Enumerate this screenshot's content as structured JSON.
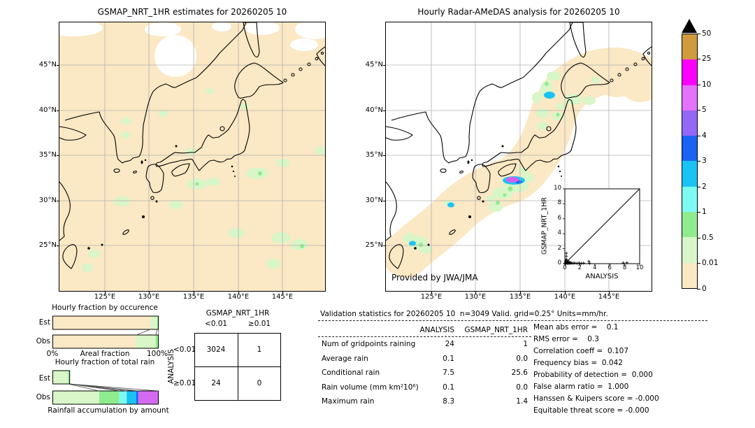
{
  "colorbar": {
    "units": "mm/hr",
    "tick_labels_top_to_bottom": [
      "50",
      "25",
      "10",
      "5",
      "4",
      "3",
      "2",
      "1",
      "0.5",
      "0.01",
      "0"
    ],
    "colors_top_to_bottom": [
      "#cf9b3d",
      "#fd00fd",
      "#e273fa",
      "#9467f8",
      "#1b63f2",
      "#19c3f3",
      "#7dfbf2",
      "#8eec8e",
      "#d8f6c8",
      "#fbe8c4"
    ],
    "overflow_marker": "black-triangle-above-50"
  },
  "chart_data": [
    {
      "type": "heatmap",
      "title": "GSMAP_NRT_1HR estimates for 20260205 10",
      "region": {
        "lon_range_deg_e": [
          120,
          150
        ],
        "lat_range_deg_n": [
          20,
          50
        ]
      },
      "lat_ticks": [
        "45°N",
        "40°N",
        "35°N",
        "30°N",
        "25°N"
      ],
      "lon_ticks": [
        "125°E",
        "130°E",
        "135°E",
        "140°E",
        "145°E"
      ],
      "legend_levels_mm_per_hr": [
        0,
        0.01,
        0.5,
        1,
        2,
        3,
        4,
        5,
        10,
        25,
        50
      ],
      "description": "Satellite rain map: nearly all area 0-0.01 mm/hr (peach); scattered 0.01-0.5 mm/hr patches (light green) over ocean south and east of Japan; white patches of missing data along the northern edge"
    },
    {
      "type": "heatmap",
      "title": "Hourly Radar-AMeDAS analysis for 20260205 10",
      "region": {
        "lon_range_deg_e": [
          120,
          150
        ],
        "lat_range_deg_n": [
          20,
          50
        ]
      },
      "lat_ticks": [
        "45°N",
        "40°N",
        "35°N",
        "30°N",
        "25°N"
      ],
      "lon_ticks": [
        "125°E",
        "130°E",
        "135°E",
        "140°E",
        "145°E"
      ],
      "credit": "Provided by JWA/JMA",
      "legend_levels_mm_per_hr": [
        0,
        0.01,
        0.5,
        1,
        2,
        3,
        4,
        5,
        10,
        25,
        50
      ],
      "description": "Radar coverage band (peach, 0 mm/hr) along the Japanese archipelago over white no-coverage ocean; light rain 0.01-1 mm/hr (greens) in Tohoku, Kinki, Kyushu and Okinawa; one intense cell up to 5-10 mm/hr (cyan/magenta) south of the Kii area"
    },
    {
      "type": "bar",
      "title": "Hourly fraction by occurence",
      "orientation": "horizontal-stacked",
      "categories": [
        "0-0.01 mm/hr",
        "0.01-0.5 mm/hr",
        "0.5-1 mm/hr"
      ],
      "colors": [
        "#fbe8c4",
        "#d8f6c8",
        "#8eec8e"
      ],
      "series": [
        {
          "name": "Est",
          "values": [
            0.925,
            0.065,
            0.01
          ]
        },
        {
          "name": "Obs",
          "values": [
            0.79,
            0.185,
            0.025
          ]
        }
      ],
      "xlabel": "Areal fraction",
      "xticks": [
        "0%",
        "100%"
      ]
    },
    {
      "type": "bar",
      "title": "Hourly fraction of total rain",
      "orientation": "horizontal-stacked",
      "categories": [
        "0.01-0.5",
        "0.5-1",
        "1-2",
        "2-3",
        "3-4",
        "5-10"
      ],
      "colors": [
        "#d8f6c8",
        "#8eec8e",
        "#7dfbf2",
        "#19c3f3",
        "#1b63f2",
        "#d36af0"
      ],
      "series": [
        {
          "name": "Est",
          "values": [
            0.145,
            0.015,
            0,
            0,
            0,
            0
          ]
        },
        {
          "name": "Obs",
          "values": [
            0.44,
            0.19,
            0.07,
            0.09,
            0.02,
            0.19
          ]
        }
      ],
      "xlabel": "Rainfall accumulation by amount"
    },
    {
      "type": "table",
      "title": "Contingency table (gridpoint counts)",
      "col_group": "GSMAP_NRT_1HR",
      "row_group": "ANALYSIS",
      "col_labels": [
        "<0.01",
        "≥0.01"
      ],
      "row_labels": [
        "<0.01",
        "≥0.01"
      ],
      "values": [
        [
          "3024",
          "1"
        ],
        [
          "24",
          "0"
        ]
      ]
    },
    {
      "type": "scatter",
      "xlabel": "ANALYSIS",
      "ylabel": "GSMAP_NRT_1HR",
      "xlim": [
        0,
        10
      ],
      "ylim": [
        0,
        10
      ],
      "tick_labels": [
        "0",
        "2",
        "4",
        "6",
        "8",
        "10"
      ],
      "reference_line": "y = x",
      "points": [
        [
          0.05,
          0.05
        ],
        [
          0.1,
          0.15
        ],
        [
          0.1,
          0.3
        ],
        [
          0.15,
          0.05
        ],
        [
          0.15,
          0.45
        ],
        [
          0.2,
          0.1
        ],
        [
          0.2,
          0.6
        ],
        [
          0.2,
          1.0
        ],
        [
          0.2,
          1.4
        ],
        [
          0.25,
          0.2
        ],
        [
          0.3,
          0.05
        ],
        [
          0.3,
          0.35
        ],
        [
          0.35,
          0.1
        ],
        [
          0.4,
          0.2
        ],
        [
          0.45,
          0.05
        ],
        [
          0.5,
          0.1
        ],
        [
          0.55,
          0.25
        ],
        [
          0.6,
          0.05
        ],
        [
          0.7,
          0.15
        ],
        [
          0.8,
          0.05
        ],
        [
          0.9,
          0.1
        ],
        [
          1.1,
          0.05
        ],
        [
          1.3,
          0.1
        ],
        [
          1.6,
          0.05
        ],
        [
          1.9,
          0.1
        ],
        [
          2.2,
          0.05
        ],
        [
          2.5,
          0.08
        ],
        [
          3.2,
          0.3
        ],
        [
          3.3,
          0.05
        ],
        [
          7.8,
          0.1
        ],
        [
          8.3,
          0.12
        ]
      ]
    },
    {
      "type": "table",
      "title": "Validation statistics for 20260205 10  n=3049 Valid. grid=0.25° Units=mm/hr.",
      "columns": [
        "ANALYSIS",
        "GSMAP_NRT_1HR"
      ],
      "rows": [
        {
          "label": "Num of gridpoints raining",
          "analysis": "24",
          "gsmap": "1"
        },
        {
          "label": "Average rain",
          "analysis": "0.1",
          "gsmap": "0.0"
        },
        {
          "label": "Conditional rain",
          "analysis": "7.5",
          "gsmap": "25.6"
        },
        {
          "label": "Rain volume (mm km²10⁶)",
          "analysis": "0.1",
          "gsmap": "0.0"
        },
        {
          "label": "Maximum rain",
          "analysis": "8.3",
          "gsmap": "1.4"
        }
      ],
      "scores": [
        "Mean abs error =    0.1",
        "RMS error =    0.3",
        "Correlation coeff =  0.107",
        "Frequency bias =  0.042",
        "Probability of detection =  0.000",
        "False alarm ratio =  1.000",
        "Hanssen & Kuipers score = -0.000",
        "Equitable threat score = -0.000"
      ]
    }
  ]
}
